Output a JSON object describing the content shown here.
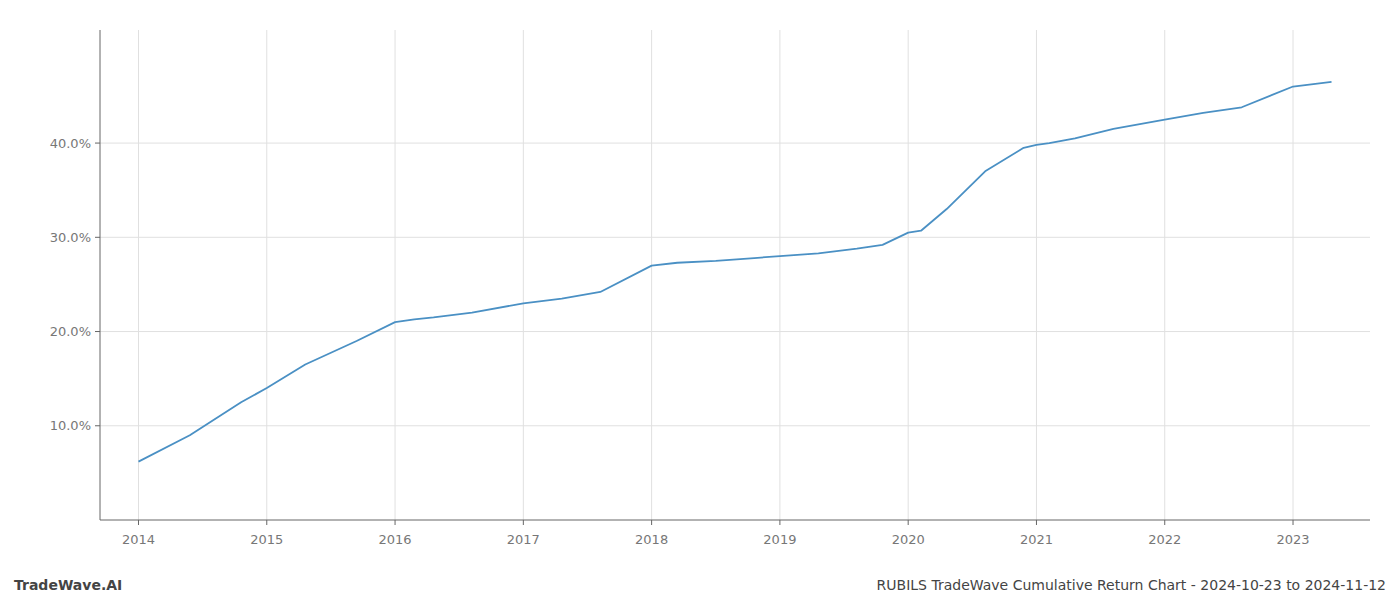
{
  "chart_data": {
    "type": "line",
    "x": [
      2014.0,
      2014.4,
      2014.8,
      2015.0,
      2015.3,
      2015.7,
      2016.0,
      2016.15,
      2016.3,
      2016.6,
      2017.0,
      2017.3,
      2017.6,
      2018.0,
      2018.2,
      2018.5,
      2018.8,
      2019.0,
      2019.3,
      2019.6,
      2019.8,
      2020.0,
      2020.1,
      2020.3,
      2020.6,
      2020.9,
      2021.0,
      2021.1,
      2021.3,
      2021.6,
      2022.0,
      2022.3,
      2022.6,
      2023.0,
      2023.3
    ],
    "values": [
      6.2,
      9.0,
      12.5,
      14.0,
      16.5,
      19.0,
      21.0,
      21.3,
      21.5,
      22.0,
      23.0,
      23.5,
      24.2,
      27.0,
      27.3,
      27.5,
      27.8,
      28.0,
      28.3,
      28.8,
      29.2,
      30.5,
      30.7,
      33.0,
      37.0,
      39.5,
      39.8,
      40.0,
      40.5,
      41.5,
      42.5,
      43.2,
      43.8,
      46.0,
      46.5
    ],
    "color": "#4a90c4",
    "xlim": [
      2013.7,
      2023.6
    ],
    "ylim": [
      0,
      52
    ],
    "xticks": [
      2014,
      2015,
      2016,
      2017,
      2018,
      2019,
      2020,
      2021,
      2022,
      2023
    ],
    "yticks": [
      {
        "value": 10,
        "label": "10.0%"
      },
      {
        "value": 20,
        "label": "20.0%"
      },
      {
        "value": 30,
        "label": "30.0%"
      },
      {
        "value": 40,
        "label": "40.0%"
      }
    ],
    "grid": true,
    "annotations": [
      "TradeWave.AI",
      "RUBILS TradeWave Cumulative Return Chart - 2024-10-23 to 2024-11-12"
    ]
  }
}
